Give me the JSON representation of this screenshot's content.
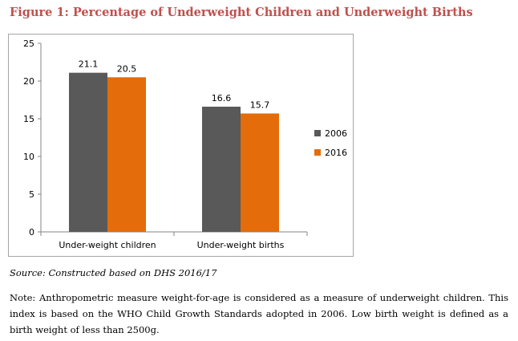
{
  "title_color": "#c0504d",
  "figure_title": "Figure 1: Percentage of Underweight Children and Underweight Births",
  "source": "Source: Constructed  based on DHS 2016/17",
  "note": "Note: Anthropometric measure weight-for-age is considered as a measure of underweight children. This index is based on the WHO Child Growth Standards adopted in 2006. Low birth weight is defined as a birth weight of less than 2500g.",
  "chart_data": {
    "type": "bar",
    "title": "",
    "xlabel": "",
    "ylabel": "",
    "categories": [
      "Under-weight children",
      "Under-weight births"
    ],
    "series": [
      {
        "name": "2006",
        "values": [
          21.1,
          16.6
        ],
        "labels": [
          "21.1",
          "16.6"
        ],
        "color": "#595959"
      },
      {
        "name": "2016",
        "values": [
          20.5,
          15.7
        ],
        "labels": [
          "20.5",
          "15.7"
        ],
        "color": "#e46c0a"
      }
    ],
    "ylim": [
      0,
      25
    ],
    "yticks": [
      0,
      5,
      10,
      15,
      20,
      25
    ],
    "grid": false,
    "legend_position": "right"
  }
}
